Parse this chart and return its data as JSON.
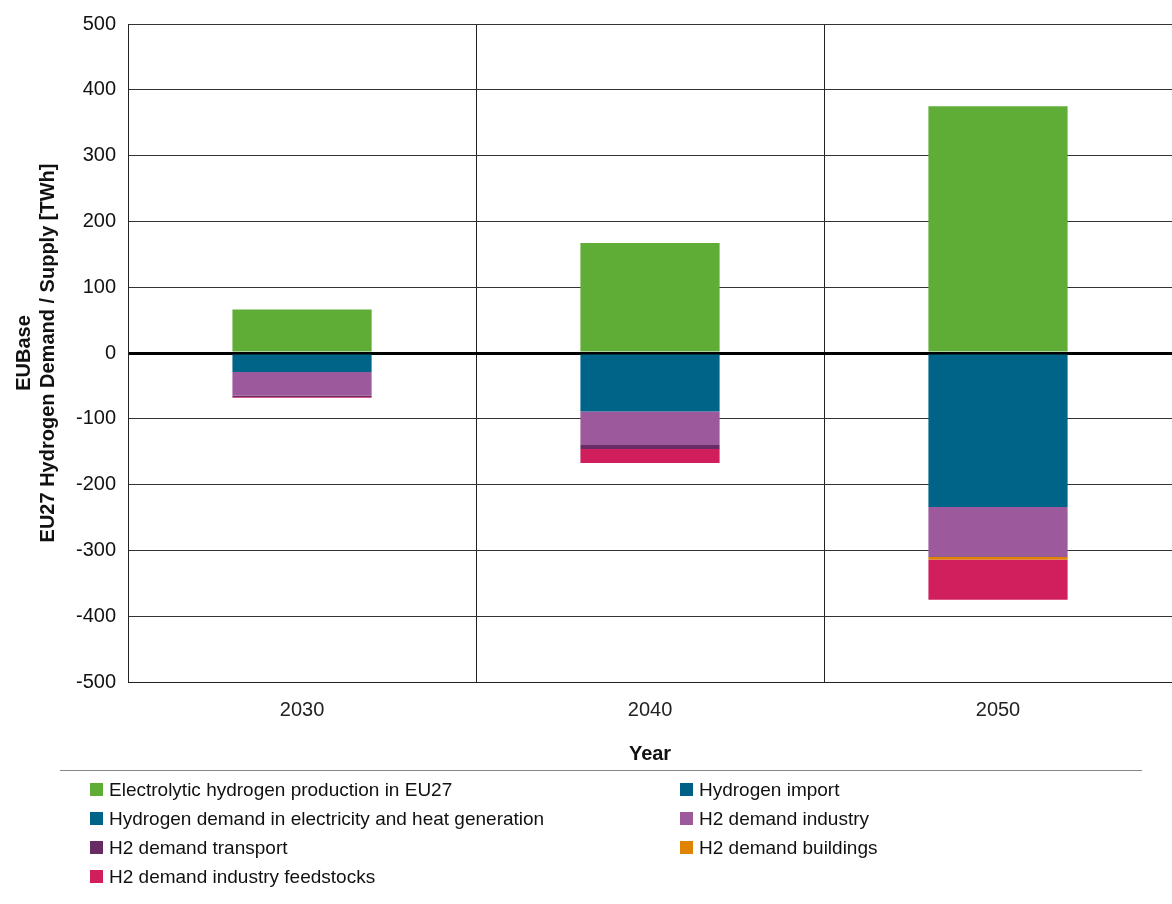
{
  "chart_data": {
    "type": "bar",
    "stacked": true,
    "xlabel": "Year",
    "ylabel": "EUBase\nEU27 Hydrogen Demand / Supply [TWh]",
    "categories": [
      "2030",
      "2040",
      "2050"
    ],
    "series": [
      {
        "name": "Electrolytic hydrogen production in EU27",
        "color": "#5fad37",
        "values": [
          66,
          167,
          375
        ]
      },
      {
        "name": "Hydrogen import",
        "color": "#005f85",
        "values": [
          0,
          0,
          0
        ]
      },
      {
        "name": "Hydrogen demand in electricity and heat generation",
        "color": "#006489",
        "values": [
          -29,
          -89,
          -234
        ]
      },
      {
        "name": "H2 demand industry",
        "color": "#9c5a9c",
        "values": [
          -36,
          -51,
          -75
        ]
      },
      {
        "name": "H2 demand transport",
        "color": "#682c65",
        "values": [
          -2,
          -6,
          -1
        ]
      },
      {
        "name": "H2 demand buildings",
        "color": "#df8300",
        "values": [
          0,
          0,
          -4
        ]
      },
      {
        "name": "H2 demand industry feedstocks",
        "color": "#d11f5e",
        "values": [
          -1,
          -21,
          -61
        ]
      }
    ],
    "ylim": [
      -500,
      500
    ],
    "yticks": [
      -500,
      -400,
      -300,
      -200,
      -100,
      0,
      100,
      200,
      300,
      400,
      500
    ],
    "grid": true,
    "legend": "bottom"
  }
}
